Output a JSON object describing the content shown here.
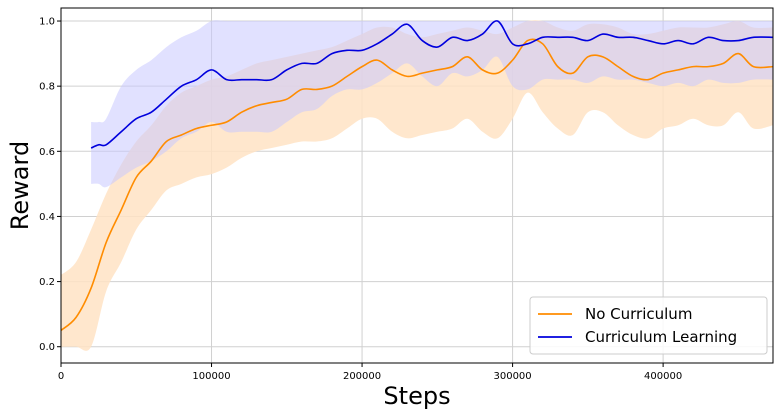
{
  "chart_data": {
    "type": "line",
    "title": "",
    "xlabel": "Steps",
    "ylabel": "Reward",
    "xlim": [
      0,
      473000
    ],
    "ylim": [
      -0.05,
      1.04
    ],
    "x_ticks": [
      0,
      100000,
      200000,
      300000,
      400000
    ],
    "x_tick_labels": [
      "0",
      "100000",
      "200000",
      "300000",
      "400000"
    ],
    "y_ticks": [
      0.0,
      0.2,
      0.4,
      0.6,
      0.8,
      1.0
    ],
    "y_tick_labels": [
      "0.0",
      "0.2",
      "0.4",
      "0.6",
      "0.8",
      "1.0"
    ],
    "grid": true,
    "legend_position": "bottom-right",
    "series": [
      {
        "name": "No Curriculum",
        "color": "#ff8c00",
        "band_color": "#ffe3c4",
        "x": [
          0,
          10000,
          20000,
          30000,
          40000,
          50000,
          60000,
          70000,
          80000,
          90000,
          100000,
          110000,
          120000,
          130000,
          140000,
          150000,
          160000,
          170000,
          180000,
          190000,
          200000,
          210000,
          220000,
          230000,
          240000,
          250000,
          260000,
          270000,
          280000,
          290000,
          300000,
          310000,
          320000,
          330000,
          340000,
          350000,
          360000,
          370000,
          380000,
          390000,
          400000,
          410000,
          420000,
          430000,
          440000,
          450000,
          460000,
          473000
        ],
        "y": [
          0.05,
          0.09,
          0.18,
          0.32,
          0.42,
          0.52,
          0.57,
          0.63,
          0.65,
          0.67,
          0.68,
          0.69,
          0.72,
          0.74,
          0.75,
          0.76,
          0.79,
          0.79,
          0.8,
          0.83,
          0.86,
          0.88,
          0.85,
          0.83,
          0.84,
          0.85,
          0.86,
          0.89,
          0.85,
          0.84,
          0.88,
          0.94,
          0.93,
          0.86,
          0.84,
          0.89,
          0.89,
          0.86,
          0.83,
          0.82,
          0.84,
          0.85,
          0.86,
          0.86,
          0.87,
          0.9,
          0.86,
          0.86
        ],
        "upper": [
          0.22,
          0.26,
          0.36,
          0.47,
          0.56,
          0.63,
          0.68,
          0.74,
          0.78,
          0.8,
          0.82,
          0.83,
          0.85,
          0.87,
          0.88,
          0.89,
          0.9,
          0.91,
          0.92,
          0.94,
          0.96,
          0.98,
          0.98,
          0.96,
          0.95,
          0.96,
          0.97,
          0.98,
          0.97,
          0.96,
          0.98,
          1.0,
          1.0,
          0.98,
          0.97,
          0.99,
          0.99,
          0.98,
          0.96,
          0.96,
          0.97,
          0.98,
          0.98,
          0.98,
          0.99,
          1.0,
          0.98,
          0.98
        ],
        "lower": [
          0.0,
          0.0,
          0.0,
          0.17,
          0.26,
          0.36,
          0.42,
          0.48,
          0.5,
          0.52,
          0.53,
          0.55,
          0.58,
          0.6,
          0.61,
          0.62,
          0.63,
          0.63,
          0.64,
          0.67,
          0.7,
          0.7,
          0.66,
          0.64,
          0.65,
          0.66,
          0.67,
          0.7,
          0.66,
          0.64,
          0.7,
          0.78,
          0.72,
          0.67,
          0.65,
          0.72,
          0.72,
          0.68,
          0.65,
          0.64,
          0.67,
          0.68,
          0.7,
          0.68,
          0.68,
          0.72,
          0.67,
          0.68
        ]
      },
      {
        "name": "Curriculum Learning",
        "color": "#0000dd",
        "band_color": "#c8c8ff",
        "x": [
          20000,
          25000,
          30000,
          40000,
          50000,
          60000,
          70000,
          80000,
          90000,
          100000,
          110000,
          120000,
          130000,
          140000,
          150000,
          160000,
          170000,
          180000,
          190000,
          200000,
          210000,
          220000,
          230000,
          240000,
          250000,
          260000,
          270000,
          280000,
          290000,
          300000,
          310000,
          320000,
          330000,
          340000,
          350000,
          360000,
          370000,
          380000,
          390000,
          400000,
          410000,
          420000,
          430000,
          440000,
          450000,
          460000,
          473000
        ],
        "y": [
          0.61,
          0.62,
          0.62,
          0.66,
          0.7,
          0.72,
          0.76,
          0.8,
          0.82,
          0.85,
          0.82,
          0.82,
          0.82,
          0.82,
          0.85,
          0.87,
          0.87,
          0.9,
          0.91,
          0.91,
          0.93,
          0.96,
          0.99,
          0.94,
          0.92,
          0.95,
          0.94,
          0.96,
          1.0,
          0.93,
          0.93,
          0.95,
          0.95,
          0.95,
          0.94,
          0.96,
          0.95,
          0.95,
          0.94,
          0.93,
          0.94,
          0.93,
          0.95,
          0.94,
          0.94,
          0.95,
          0.95
        ],
        "upper": [
          0.69,
          0.69,
          0.7,
          0.8,
          0.85,
          0.88,
          0.92,
          0.95,
          0.97,
          1.0,
          1.0,
          1.0,
          1.0,
          1.0,
          1.0,
          1.0,
          1.0,
          1.0,
          1.0,
          1.0,
          1.0,
          1.0,
          1.0,
          1.0,
          1.0,
          1.0,
          1.0,
          1.0,
          1.0,
          1.0,
          1.0,
          1.0,
          1.0,
          1.0,
          1.0,
          1.0,
          1.0,
          1.0,
          1.0,
          1.0,
          1.0,
          1.0,
          1.0,
          1.0,
          1.0,
          1.0,
          1.0
        ],
        "lower": [
          0.5,
          0.5,
          0.49,
          0.52,
          0.55,
          0.57,
          0.6,
          0.64,
          0.66,
          0.69,
          0.66,
          0.66,
          0.66,
          0.66,
          0.69,
          0.72,
          0.73,
          0.77,
          0.79,
          0.79,
          0.81,
          0.84,
          0.87,
          0.83,
          0.8,
          0.84,
          0.83,
          0.85,
          0.89,
          0.8,
          0.79,
          0.82,
          0.82,
          0.82,
          0.81,
          0.83,
          0.82,
          0.82,
          0.81,
          0.8,
          0.81,
          0.8,
          0.82,
          0.81,
          0.81,
          0.82,
          0.82
        ]
      }
    ]
  }
}
